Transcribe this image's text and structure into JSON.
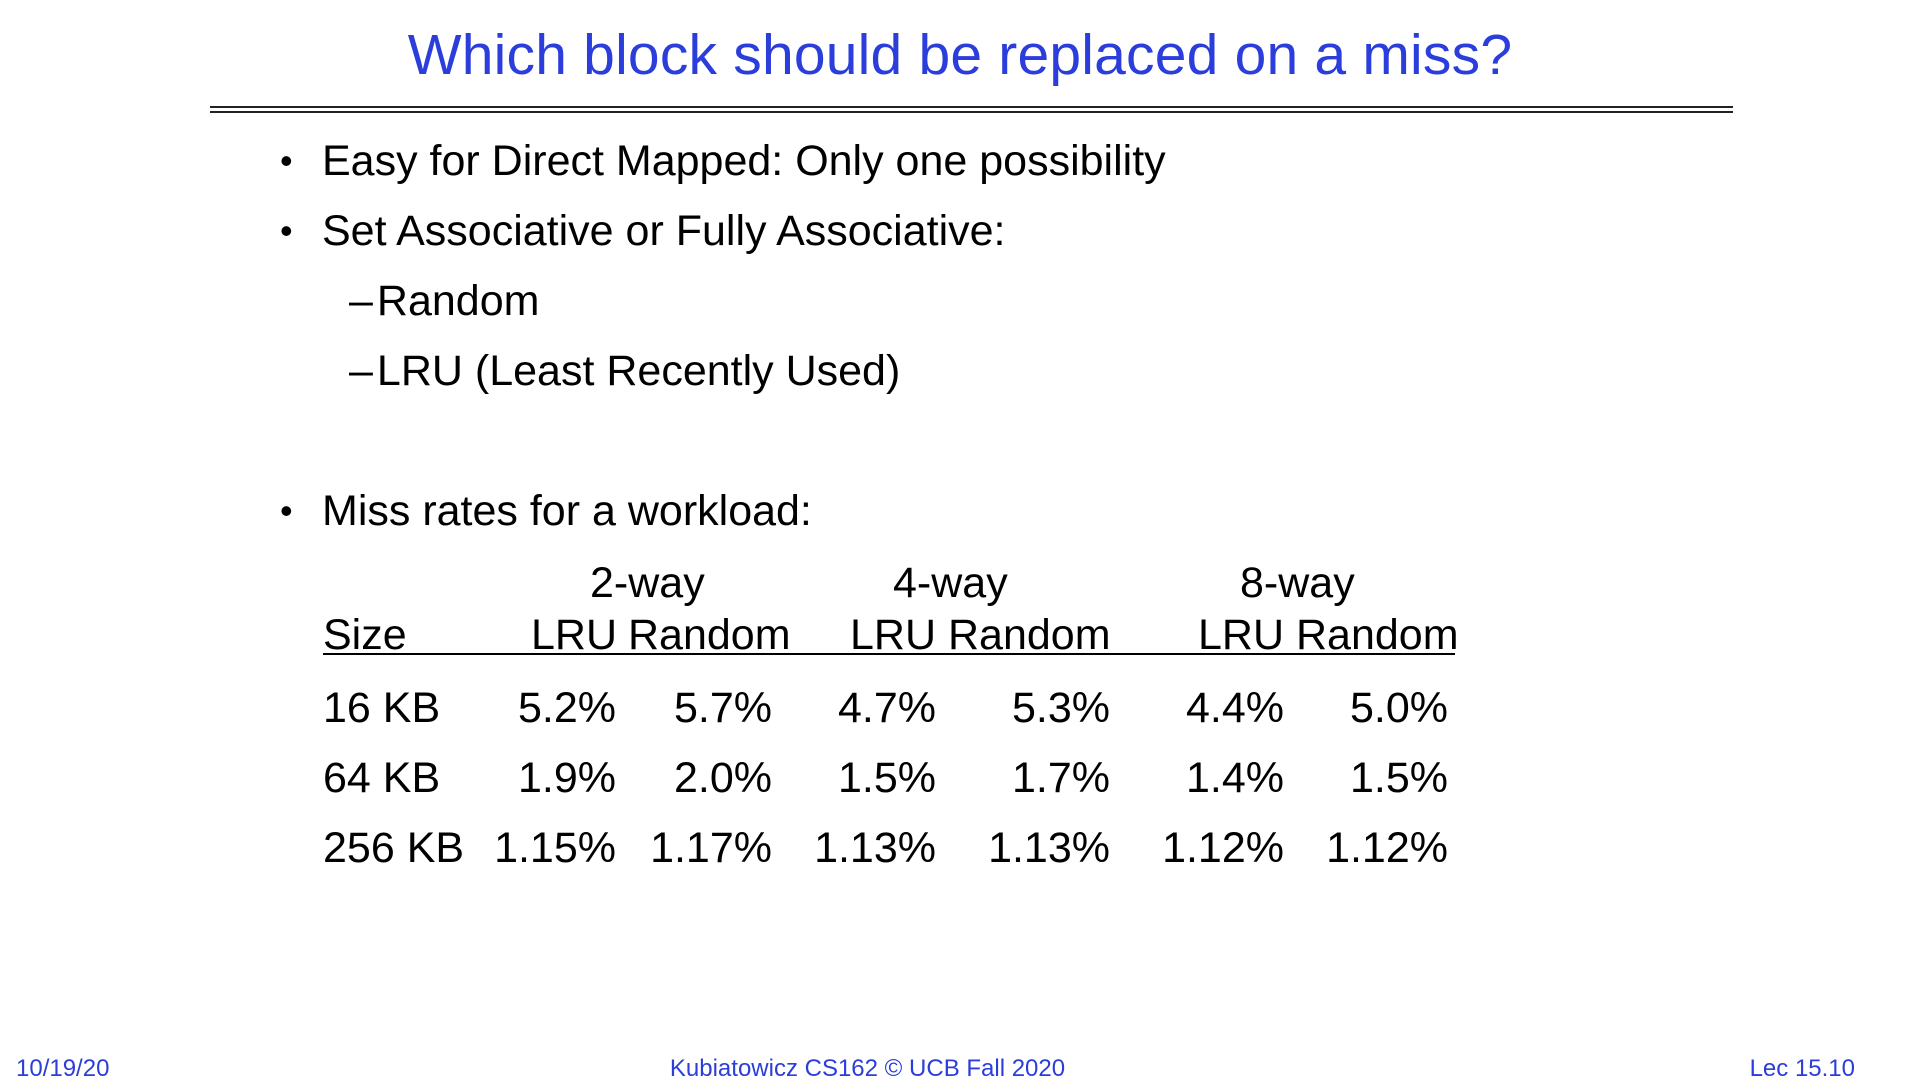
{
  "slide": {
    "title": "Which block should be replaced on a miss?",
    "bullets": [
      "Easy for Direct Mapped: Only one possibility",
      "Set Associative or Fully Associative:"
    ],
    "sub_bullets": [
      "Random",
      "LRU (Least Recently Used)"
    ],
    "bullet_miss": "Miss rates for a workload:",
    "bullet_symbol": "•",
    "dash_symbol": "–"
  },
  "table": {
    "groups": [
      "2-way",
      "4-way",
      "8-way"
    ],
    "size_header": "Size",
    "policy_headers": [
      "LRU",
      "Random",
      "LRU",
      "Random",
      "LRU",
      "Random"
    ],
    "rows": [
      {
        "size": "16 KB",
        "values": [
          "5.2%",
          "5.7%",
          "4.7%",
          "5.3%",
          "4.4%",
          "5.0%"
        ]
      },
      {
        "size": "64 KB",
        "values": [
          "1.9%",
          "2.0%",
          "1.5%",
          "1.7%",
          "1.4%",
          "1.5%"
        ]
      },
      {
        "size": "256 KB",
        "values": [
          "1.15%",
          "1.17%",
          "1.13%",
          "1.13%",
          "1.12%",
          "1.12%"
        ]
      }
    ]
  },
  "footer": {
    "date": "10/19/20",
    "course": "Kubiatowicz CS162 © UCB Fall 2020",
    "lecture": "Lec 15.10"
  },
  "colors": {
    "title": "#2b3ddb",
    "footer": "#2b3ddb",
    "text": "#000000"
  }
}
